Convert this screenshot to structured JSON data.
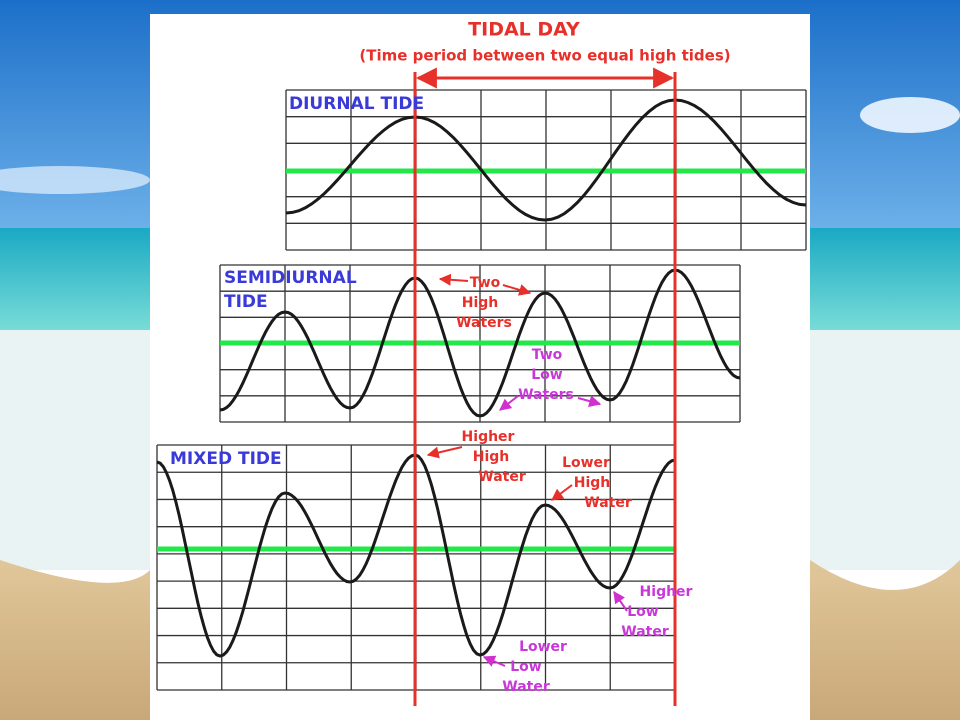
{
  "header": {
    "title": "TIDAL DAY",
    "subtitle": "(Time period between two equal high tides)"
  },
  "panels": [
    {
      "label": [
        "DIURNAL TIDE"
      ]
    },
    {
      "label": [
        "SEMIDIURNAL",
        "TIDE"
      ]
    },
    {
      "label": [
        "MIXED TIDE"
      ]
    }
  ],
  "annotations": [
    {
      "lines": [
        "Two",
        "High",
        "Waters"
      ]
    },
    {
      "lines": [
        "Two",
        "Low",
        "Waters"
      ]
    },
    {
      "lines": [
        "Higher",
        "High",
        "Water"
      ]
    },
    {
      "lines": [
        "Lower",
        "High",
        "Water"
      ]
    },
    {
      "lines": [
        "Higher",
        "Low",
        "Water"
      ]
    },
    {
      "lines": [
        "Lower",
        "Low",
        "Water"
      ]
    }
  ]
}
